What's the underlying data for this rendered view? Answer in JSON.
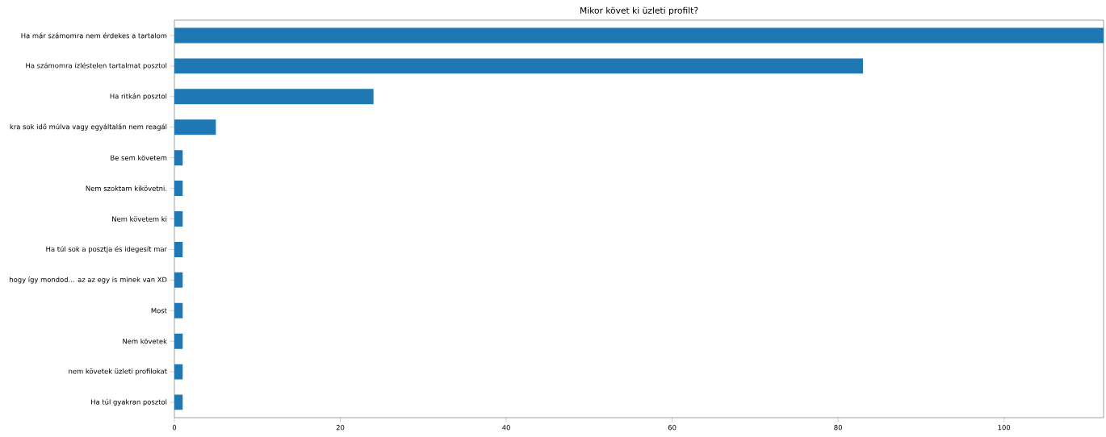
{
  "chart_data": {
    "type": "bar",
    "orientation": "horizontal",
    "title": "Mikor követ ki üzleti profilt?",
    "categories": [
      "Ha már számomra nem érdekes a tartalom",
      "Ha számomra ízléstelen tartalmat posztol",
      "Ha ritkán posztol",
      "kra sok idő múlva vagy egyáltalán nem reagál",
      "Be sem követem",
      "Nem szoktam kikövetni.",
      "Nem követem ki",
      "Ha túl sok a posztja és idegesít mar",
      "hogy így mondod... az az egy is minek van XD",
      "Most",
      "Nem követek",
      "nem követek üzleti profilokat",
      "Ha túl gyakran posztol"
    ],
    "values": [
      112,
      83,
      24,
      5,
      1,
      1,
      1,
      1,
      1,
      1,
      1,
      1,
      1
    ],
    "color": "#1f77b4",
    "xlim": [
      0,
      112
    ],
    "xticks": [
      0,
      20,
      40,
      60,
      80,
      100
    ]
  }
}
